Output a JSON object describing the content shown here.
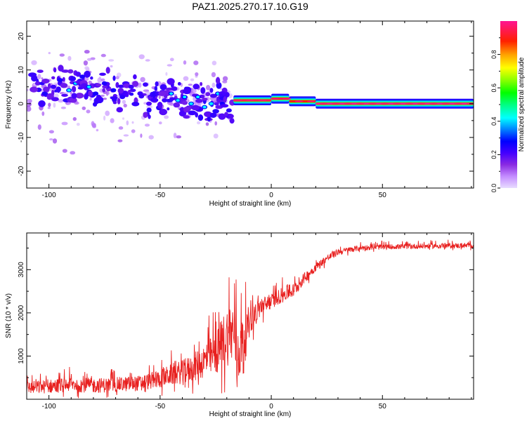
{
  "title": "PAZ1.2025.270.17.10.G19",
  "chart_data": [
    {
      "type": "heatmap",
      "name": "spectrogram",
      "xlabel": "Height of straight line (km)",
      "ylabel": "Frequency (Hz)",
      "xlim": [
        -110,
        91
      ],
      "ylim": [
        -25,
        24.5
      ],
      "xticks": [
        -100,
        -50,
        0,
        50
      ],
      "yticks": [
        20,
        10,
        0,
        -10,
        -20
      ],
      "colorbar": {
        "label": "Normalized spectral amplitude",
        "range": [
          0,
          1
        ],
        "ticks": [
          0.0,
          0.2,
          0.4,
          0.6,
          0.8
        ],
        "colors": [
          "#e0d0ff",
          "#c48cff",
          "#8a2be2",
          "#4400ff",
          "#0000ff",
          "#0080ff",
          "#00ffff",
          "#00ff80",
          "#00ff00",
          "#80ff00",
          "#ffff00",
          "#ffa000",
          "#ff0000",
          "#ff1493"
        ]
      },
      "blobs": [
        {
          "x": -105,
          "f": 6,
          "v": 0.18
        },
        {
          "x": -102,
          "f": 3,
          "v": 0.25
        },
        {
          "x": -98,
          "f": 5,
          "v": 0.22
        },
        {
          "x": -95,
          "f": 7,
          "v": 0.25
        },
        {
          "x": -91,
          "f": 4,
          "v": 0.3
        },
        {
          "x": -88,
          "f": 6,
          "v": 0.28
        },
        {
          "x": -85,
          "f": 8,
          "v": 0.25
        },
        {
          "x": -82,
          "f": 5,
          "v": 0.3
        },
        {
          "x": -79,
          "f": 3,
          "v": 0.26
        },
        {
          "x": -75,
          "f": 6,
          "v": 0.25
        },
        {
          "x": -71,
          "f": 4,
          "v": 0.26
        },
        {
          "x": -67,
          "f": 2,
          "v": 0.24
        },
        {
          "x": -63,
          "f": 5,
          "v": 0.22
        },
        {
          "x": -59,
          "f": 3,
          "v": 0.22
        },
        {
          "x": -55,
          "f": 0,
          "v": 0.2
        },
        {
          "x": -51,
          "f": 3,
          "v": 0.22
        },
        {
          "x": -48,
          "f": 1,
          "v": 0.22
        },
        {
          "x": -45,
          "f": 3,
          "v": 0.28
        },
        {
          "x": -42,
          "f": 1,
          "v": 0.3
        },
        {
          "x": -39,
          "f": 2,
          "v": 0.28
        },
        {
          "x": -36,
          "f": 0,
          "v": 0.3
        },
        {
          "x": -33,
          "f": 2,
          "v": 0.28
        },
        {
          "x": -30,
          "f": -1,
          "v": 0.3
        },
        {
          "x": -27,
          "f": 0,
          "v": 0.32
        },
        {
          "x": -24,
          "f": 3,
          "v": 0.28
        },
        {
          "x": -22,
          "f": 0,
          "v": 0.26
        },
        {
          "x": -19,
          "f": -2,
          "v": 0.24
        }
      ],
      "band": {
        "segments": [
          {
            "x0": -17,
            "x1": 0,
            "f": 1,
            "v": 0.95
          },
          {
            "x0": 0,
            "x1": 8,
            "f": 1.5,
            "v": 0.95
          },
          {
            "x0": 8,
            "x1": 20,
            "f": 0.7,
            "v": 0.9
          },
          {
            "x0": 20,
            "x1": 91,
            "f": 0,
            "v": 1.0
          }
        ]
      }
    },
    {
      "type": "line",
      "name": "snr",
      "xlabel": "Height of straight line (km)",
      "ylabel": "SNR (10 * v/v)",
      "xlim": [
        -110,
        91
      ],
      "ylim": [
        0,
        3850
      ],
      "xticks": [
        -100,
        -50,
        0,
        50
      ],
      "yticks": [
        1000,
        2000,
        3000
      ],
      "color": "#e8201f",
      "x": [
        -110,
        -100,
        -90,
        -80,
        -70,
        -60,
        -50,
        -45,
        -40,
        -35,
        -30,
        -25,
        -20,
        -17,
        -15,
        -12,
        -10,
        -5,
        0,
        5,
        10,
        15,
        20,
        25,
        30,
        40,
        50,
        60,
        70,
        80,
        91
      ],
      "y": [
        250,
        280,
        330,
        300,
        320,
        350,
        450,
        550,
        600,
        700,
        850,
        1000,
        1400,
        1500,
        1000,
        1300,
        1800,
        2100,
        2250,
        2400,
        2500,
        2800,
        3050,
        3250,
        3400,
        3500,
        3520,
        3530,
        3540,
        3550,
        3550
      ],
      "noise": [
        300,
        320,
        350,
        350,
        350,
        360,
        420,
        500,
        550,
        650,
        800,
        1000,
        1400,
        1500,
        1400,
        1200,
        700,
        450,
        350,
        350,
        330,
        250,
        200,
        170,
        150,
        130,
        120,
        120,
        120,
        120,
        120
      ]
    }
  ]
}
